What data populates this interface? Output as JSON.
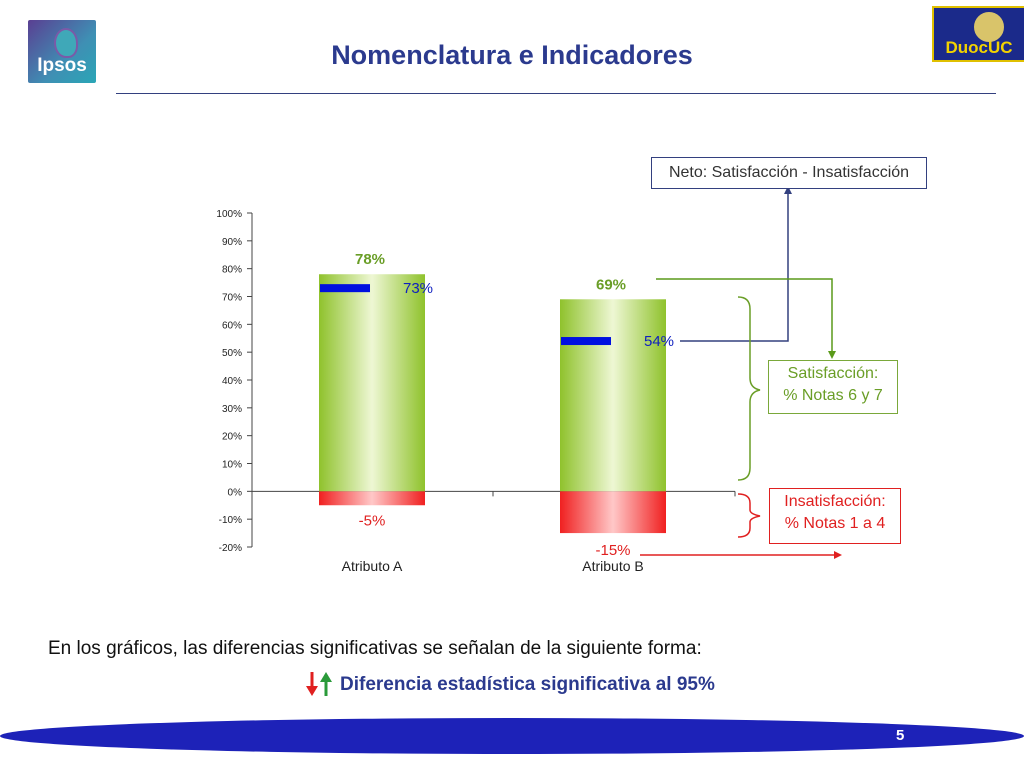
{
  "header": {
    "title": "Nomenclatura e Indicadores",
    "logo_left_text": "Ipsos",
    "logo_right_text": "DuocUC"
  },
  "chart_data": {
    "type": "bar",
    "categories": [
      "Atributo A",
      "Atributo B"
    ],
    "ylim": [
      -20,
      100
    ],
    "yticks": [
      "100%",
      "90%",
      "80%",
      "70%",
      "60%",
      "50%",
      "40%",
      "30%",
      "20%",
      "10%",
      "0%",
      "-10%",
      "-20%"
    ],
    "ytick_values": [
      100,
      90,
      80,
      70,
      60,
      50,
      40,
      30,
      20,
      10,
      0,
      -10,
      -20
    ],
    "series": [
      {
        "name": "Satisfacción",
        "values": [
          78,
          69
        ],
        "labels": [
          "78%",
          "69%"
        ],
        "color": "#9fcf3e"
      },
      {
        "name": "Insatisfacción",
        "values": [
          -5,
          -15
        ],
        "labels": [
          "-5%",
          "-15%"
        ],
        "color": "#f02a2a"
      },
      {
        "name": "Neto",
        "values": [
          73,
          54
        ],
        "labels": [
          "73%",
          "54%"
        ],
        "color": "#0010e0"
      }
    ],
    "grid": false
  },
  "annotations": {
    "neto": "Neto: Satisfacción - Insatisfacción",
    "satisfaccion_line1": "Satisfacción:",
    "satisfaccion_line2": "% Notas 6 y 7",
    "insatisfaccion_line1": "Insatisfacción:",
    "insatisfaccion_line2": "% Notas 1 a 4"
  },
  "colors": {
    "title": "#2b3a8e",
    "neto_box": "#33407f",
    "satisfaccion": "#6a9e27",
    "insatisfaccion": "#e02020",
    "down_arrow": "#e02020",
    "up_arrow": "#2a9a3a"
  },
  "footer": {
    "note": "En los gráficos, las diferencias significativas se señalan de la siguiente forma:",
    "significance_label": "Diferencia estadística significativa al 95%",
    "page_number": "5"
  }
}
